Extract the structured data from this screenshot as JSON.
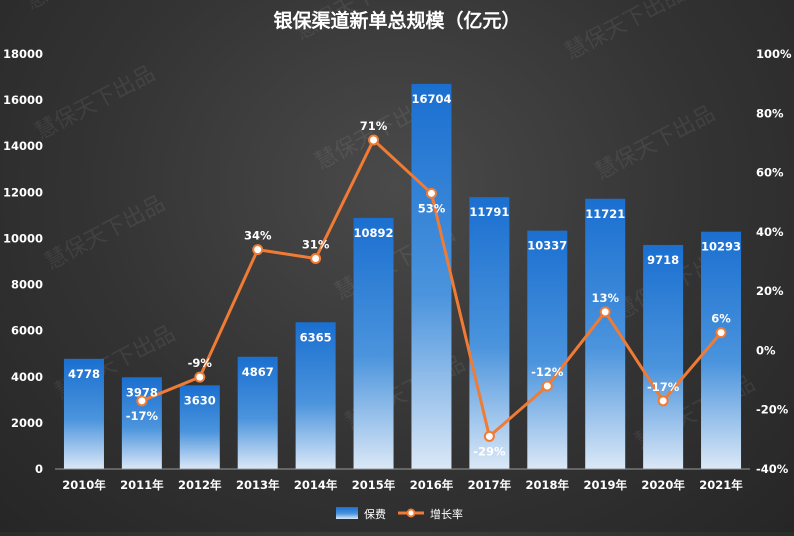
{
  "chart_data": {
    "type": "bar",
    "title": "银保渠道新单总规模（亿元）",
    "categories": [
      "2010年",
      "2011年",
      "2012年",
      "2013年",
      "2014年",
      "2015年",
      "2016年",
      "2017年",
      "2018年",
      "2019年",
      "2020年",
      "2021年"
    ],
    "series": [
      {
        "name": "保费",
        "type": "bar",
        "axis": "left",
        "values": [
          4778,
          3978,
          3630,
          4867,
          6365,
          10892,
          16704,
          11791,
          10337,
          11721,
          9718,
          10293
        ],
        "labels": [
          "4778",
          "3978",
          "3630",
          "4867",
          "6365",
          "10892",
          "16704",
          "11791",
          "10337",
          "11721",
          "9718",
          "10293"
        ]
      },
      {
        "name": "增长率",
        "type": "line",
        "axis": "right",
        "values": [
          null,
          -17,
          -9,
          34,
          31,
          71,
          53,
          -29,
          -12,
          13,
          -17,
          6
        ],
        "labels": [
          "",
          "-17%",
          "-9%",
          "34%",
          "31%",
          "71%",
          "53%",
          "-29%",
          "-12%",
          "13%",
          "-17%",
          "6%"
        ]
      }
    ],
    "y_left": {
      "min": 0,
      "max": 18000,
      "ticks": [
        "0",
        "2000",
        "4000",
        "6000",
        "8000",
        "10000",
        "12000",
        "14000",
        "16000",
        "18000"
      ]
    },
    "y_right": {
      "min": -40,
      "max": 100,
      "ticks": [
        "-40%",
        "-20%",
        "0%",
        "20%",
        "40%",
        "60%",
        "80%",
        "100%"
      ]
    },
    "legend_position": "bottom",
    "grid": false,
    "watermark": "慧保天下出品",
    "colors": {
      "bar_top": "#1a6fd0",
      "bar_bottom": "#dbe8f7",
      "line": "#f07b34",
      "marker_fill": "#ffffff",
      "text": "#ffffff"
    }
  }
}
